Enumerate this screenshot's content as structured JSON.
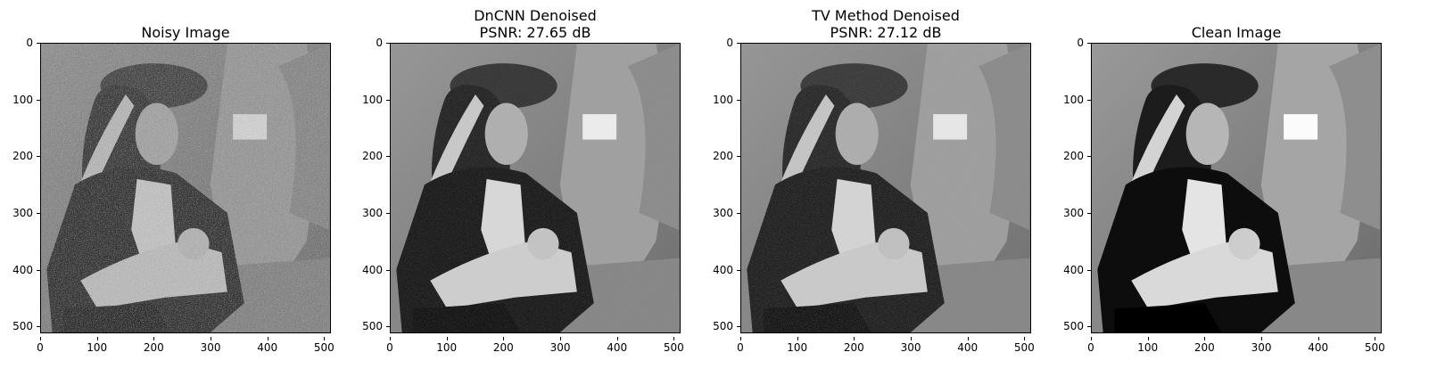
{
  "figure": {
    "panels": [
      {
        "id": "noisy",
        "title_lines": [
          "Noisy Image"
        ],
        "noise": 0.9,
        "contrast": 0.75
      },
      {
        "id": "dncnn",
        "title_lines": [
          "DnCNN Denoised",
          "PSNR: 27.65 dB"
        ],
        "noise": 0.15,
        "contrast": 1.0
      },
      {
        "id": "tv",
        "title_lines": [
          "TV Method Denoised",
          "PSNR: 27.12 dB"
        ],
        "noise": 0.2,
        "contrast": 0.95
      },
      {
        "id": "clean",
        "title_lines": [
          "Clean Image"
        ],
        "noise": 0.0,
        "contrast": 1.15
      }
    ],
    "axes": {
      "xticks": [
        "0",
        "100",
        "200",
        "300",
        "400",
        "500"
      ],
      "yticks": [
        "0",
        "100",
        "200",
        "300",
        "400",
        "500"
      ],
      "xlim": [
        0,
        512
      ],
      "ylim": [
        512,
        0
      ]
    },
    "image_description_icon": "grayscale-photo-person-with-feathered-hat"
  }
}
